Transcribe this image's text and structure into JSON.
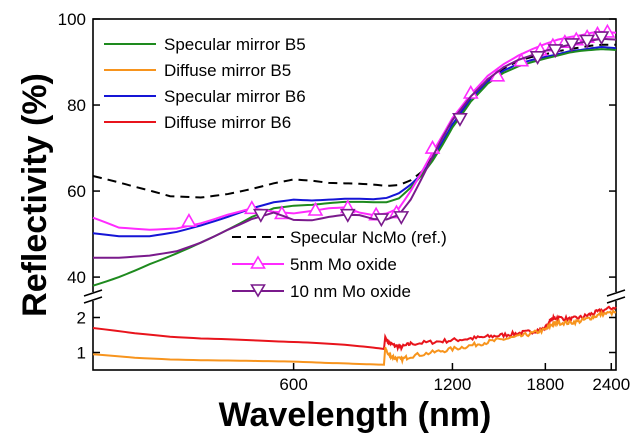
{
  "chart_data": {
    "type": "line",
    "xlabel": "Wavelength (nm)",
    "ylabel": "Reflectivity (%)",
    "x_ticks": [
      {
        "value": 600,
        "label": "600"
      },
      {
        "value": 1200,
        "label": "1200"
      },
      {
        "value": 1800,
        "label": "1800"
      },
      {
        "value": 2400,
        "label": "2400"
      }
    ],
    "upper_panel": {
      "ylim": [
        37,
        100
      ],
      "y_ticks": [
        {
          "value": 40,
          "label": "40"
        },
        {
          "value": 60,
          "label": "60"
        },
        {
          "value": 80,
          "label": "80"
        },
        {
          "value": 100,
          "label": "100"
        }
      ]
    },
    "lower_panel": {
      "ylim": [
        0.5,
        2.5
      ],
      "y_ticks": [
        {
          "value": 1,
          "label": "1"
        },
        {
          "value": 2,
          "label": "2"
        }
      ]
    },
    "legend_top": [
      {
        "label": "Specular mirror B5",
        "color": "#1e8a1e"
      },
      {
        "label": "Diffuse mirror B5",
        "color": "#f7941d"
      },
      {
        "label": "Specular mirror B6",
        "color": "#1515d6"
      },
      {
        "label": "Diffuse mirror B6",
        "color": "#e8141c"
      }
    ],
    "legend_bottom": [
      {
        "label": "Specular NcMo (ref.)",
        "color": "#000000",
        "style": "dashed"
      },
      {
        "label": "5nm Mo oxide",
        "color": "#ff2bff",
        "marker": "triangle-up"
      },
      {
        "label": "10 nm Mo oxide",
        "color": "#7a1a8c",
        "marker": "triangle-down"
      }
    ],
    "series": [
      {
        "id": "ref",
        "color": "#000000",
        "dash": "9,6",
        "panel": "upper",
        "x": [
          250,
          300,
          350,
          400,
          450,
          500,
          550,
          600,
          650,
          700,
          750,
          800,
          850,
          900,
          950,
          1000,
          1050,
          1100,
          1150,
          1200,
          1300,
          1400,
          1500,
          1600,
          1700,
          1800,
          1900,
          2000,
          2100,
          2200,
          2300,
          2450
        ],
        "y": [
          63.5,
          61,
          58.8,
          58.5,
          59.3,
          60.5,
          61.8,
          62.7,
          62.4,
          61.9,
          61.8,
          61.7,
          61.5,
          61.2,
          61.4,
          62.5,
          64.5,
          68.5,
          72.5,
          76.5,
          82,
          86,
          88.5,
          90.3,
          91.2,
          91.8,
          92.5,
          93,
          93.4,
          93.8,
          94,
          94
        ]
      },
      {
        "id": "b6spec",
        "color": "#1515d6",
        "dash": "",
        "panel": "upper",
        "x": [
          250,
          280,
          320,
          360,
          400,
          450,
          500,
          550,
          600,
          650,
          700,
          750,
          800,
          850,
          900,
          950,
          1000,
          1050,
          1100,
          1150,
          1200,
          1300,
          1400,
          1500,
          1600,
          1700,
          1800,
          1900,
          2000,
          2100,
          2200,
          2300,
          2450
        ],
        "y": [
          50.2,
          49.5,
          49.5,
          50.5,
          52,
          54,
          56,
          57.4,
          58,
          57.8,
          58,
          58.2,
          58.2,
          58.1,
          58.4,
          59.5,
          61.5,
          64,
          67.5,
          71.5,
          75.5,
          81.5,
          85.5,
          88,
          89.6,
          90.5,
          91.2,
          91.8,
          92.5,
          92.8,
          93.2,
          93.5,
          93.2
        ]
      },
      {
        "id": "b5spec",
        "color": "#1e8a1e",
        "dash": "",
        "panel": "upper",
        "x": [
          250,
          280,
          320,
          360,
          400,
          450,
          500,
          550,
          600,
          650,
          700,
          750,
          800,
          850,
          900,
          950,
          1000,
          1050,
          1100,
          1150,
          1200,
          1300,
          1400,
          1500,
          1600,
          1700,
          1800,
          1900,
          2000,
          2100,
          2200,
          2300,
          2450
        ],
        "y": [
          38,
          40,
          43,
          45.5,
          48,
          51,
          54,
          56,
          56.6,
          56.8,
          57.2,
          57.5,
          57.5,
          57.4,
          57.4,
          58.3,
          60.8,
          63.8,
          67,
          70.8,
          74.8,
          80.8,
          85,
          87.5,
          89,
          90,
          90.8,
          91.5,
          92.2,
          92.6,
          92.8,
          93,
          92.8
        ]
      },
      {
        "id": "mo5",
        "color": "#ff2bff",
        "dash": "",
        "panel": "upper",
        "marker": "up",
        "x": [
          250,
          280,
          320,
          360,
          400,
          450,
          500,
          550,
          600,
          650,
          700,
          750,
          800,
          850,
          900,
          950,
          1000,
          1050,
          1100,
          1150,
          1200,
          1300,
          1400,
          1500,
          1600,
          1700,
          1800,
          1900,
          2000,
          2100,
          2200,
          2300,
          2450
        ],
        "y": [
          53.8,
          51.5,
          51,
          51.3,
          52.5,
          54.5,
          56,
          55.2,
          54.8,
          55.4,
          56,
          56.2,
          55,
          54.4,
          54.8,
          56,
          60,
          64.5,
          69,
          73,
          77,
          82.5,
          86.8,
          89.5,
          91.5,
          93,
          94.2,
          95.2,
          95.8,
          96.2,
          96.8,
          97,
          96.8
        ],
        "marker_x": [
          380,
          500,
          570,
          660,
          760,
          860,
          940,
          1100,
          1300,
          1460,
          1620,
          1760,
          1860,
          1960,
          2060,
          2160,
          2260,
          2360
        ],
        "marker_y": [
          53,
          56,
          54.8,
          55.6,
          56.2,
          54.5,
          55,
          70,
          82.8,
          86.8,
          90.3,
          92.8,
          93.8,
          94.6,
          95.2,
          95.8,
          96.5,
          97
        ]
      },
      {
        "id": "mo10",
        "color": "#7a1a8c",
        "dash": "",
        "panel": "upper",
        "marker": "down",
        "x": [
          250,
          280,
          320,
          360,
          400,
          450,
          500,
          550,
          600,
          650,
          700,
          750,
          800,
          850,
          900,
          950,
          1000,
          1050,
          1100,
          1150,
          1200,
          1300,
          1400,
          1500,
          1600,
          1700,
          1800,
          1900,
          2000,
          2100,
          2200,
          2300,
          2450
        ],
        "y": [
          44.5,
          44.5,
          45,
          46,
          48,
          51,
          53.5,
          55,
          53.3,
          53.2,
          54,
          54.5,
          54.4,
          53.5,
          53.4,
          54.5,
          58,
          63,
          68,
          72.5,
          76.5,
          82,
          86,
          88.8,
          90.5,
          91.6,
          92.6,
          93.4,
          94,
          94.5,
          95,
          95.4,
          95.2
        ],
        "marker_x": [
          520,
          760,
          880,
          960,
          1240,
          1740,
          1880,
          2020,
          2160,
          2300
        ],
        "marker_y": [
          54.5,
          54.5,
          53.5,
          54,
          76.8,
          91.2,
          92.8,
          94.2,
          95,
          95.8
        ]
      },
      {
        "id": "b6diff",
        "color": "#e8141c",
        "dash": "",
        "panel": "lower",
        "noisy_from": 900,
        "x": [
          250,
          300,
          350,
          400,
          450,
          500,
          550,
          600,
          650,
          700,
          750,
          800,
          850,
          890,
          895,
          905,
          930,
          960,
          1000,
          1100,
          1200,
          1300,
          1400,
          1500,
          1600,
          1700,
          1800,
          1850,
          1900,
          2000,
          2100,
          2200,
          2300,
          2450
        ],
        "y": [
          1.7,
          1.55,
          1.45,
          1.4,
          1.38,
          1.35,
          1.32,
          1.3,
          1.28,
          1.25,
          1.22,
          1.18,
          1.14,
          1.1,
          1.45,
          1.3,
          1.2,
          1.15,
          1.25,
          1.3,
          1.35,
          1.4,
          1.45,
          1.5,
          1.55,
          1.6,
          1.7,
          1.95,
          2.0,
          1.95,
          2.0,
          2.1,
          2.2,
          2.3
        ]
      },
      {
        "id": "b5diff",
        "color": "#f7941d",
        "dash": "",
        "panel": "lower",
        "noisy_from": 900,
        "x": [
          250,
          300,
          350,
          400,
          450,
          500,
          550,
          600,
          650,
          700,
          750,
          800,
          850,
          890,
          895,
          905,
          930,
          960,
          1000,
          1100,
          1200,
          1300,
          1400,
          1500,
          1600,
          1700,
          1800,
          1850,
          1900,
          2000,
          2100,
          2200,
          2300,
          2450
        ],
        "y": [
          0.95,
          0.85,
          0.8,
          0.78,
          0.77,
          0.76,
          0.75,
          0.74,
          0.72,
          0.7,
          0.69,
          0.67,
          0.66,
          0.65,
          1.15,
          0.95,
          0.85,
          0.8,
          0.9,
          1.0,
          1.1,
          1.2,
          1.3,
          1.38,
          1.45,
          1.55,
          1.65,
          1.8,
          1.85,
          1.85,
          1.9,
          2.0,
          2.1,
          2.15
        ]
      }
    ]
  }
}
